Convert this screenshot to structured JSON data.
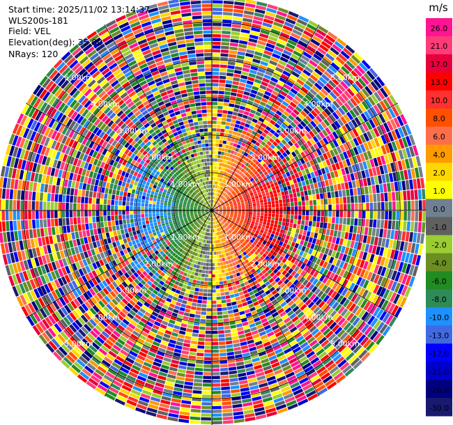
{
  "header": {
    "start_time": "Start time: 2025/11/02 13:14:37",
    "instrument": "WLS200s-181",
    "field": "Field: VEL",
    "elevation": "Elevation(deg): 35.00",
    "nrays": "NRays: 120"
  },
  "chart_data": {
    "type": "heatmap",
    "projection": "polar-ppi",
    "n_rays": 120,
    "range_rings_km": [
      1,
      2,
      3,
      4,
      5
    ],
    "max_range_km": 5.7,
    "range_labels": [
      "1.00km",
      "2.00km",
      "3.00km",
      "4.00km",
      "5.00km"
    ],
    "colorbar": {
      "unit": "m/s",
      "ticks": [
        "26.0",
        "21.0",
        "17.0",
        "13.0",
        "10.0",
        "8.0",
        "6.0",
        "4.0",
        "2.0",
        "1.0",
        "0.0",
        "-1.0",
        "-2.0",
        "-4.0",
        "-6.0",
        "-8.0",
        "-10.0",
        "-13.0",
        "-17.0",
        "-21.0",
        "-26.0",
        "-30.0"
      ],
      "colors": [
        "#ff1493",
        "#ff3c78",
        "#e6003c",
        "#ff0000",
        "#ff3030",
        "#ff5000",
        "#ff6e4a",
        "#ff9a00",
        "#ffd700",
        "#ffff00",
        "#708090",
        "#606060",
        "#9acd32",
        "#6b8e23",
        "#228b22",
        "#2e8b57",
        "#1e90ff",
        "#4169e1",
        "#0000ff",
        "#0000cd",
        "#000080",
        "#191970"
      ]
    }
  }
}
